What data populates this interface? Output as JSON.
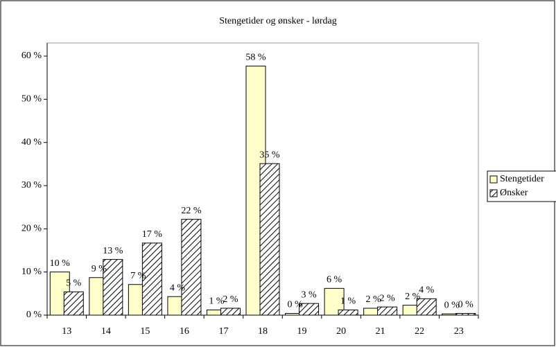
{
  "chart_data": {
    "type": "bar",
    "title": "Stengetider og ønsker - lørdag",
    "categories": [
      "13",
      "14",
      "15",
      "16",
      "17",
      "18",
      "19",
      "20",
      "21",
      "22",
      "23"
    ],
    "series": [
      {
        "name": "Stengetider",
        "color": "#ffffcc",
        "pattern": "solid",
        "values": [
          10,
          8.7,
          7.1,
          4.3,
          1.2,
          57.7,
          0.4,
          6.2,
          1.6,
          2.3,
          0.3
        ],
        "value_labels": [
          "10 %",
          "9 %",
          "7 %",
          "4 %",
          "1 %",
          "58 %",
          "0 %",
          "6 %",
          "2 %",
          "2 %",
          "0 %"
        ]
      },
      {
        "name": "Ønsker",
        "color": "#ffffff",
        "pattern": "hatch",
        "values": [
          5.4,
          12.9,
          16.7,
          22.2,
          1.6,
          35.1,
          2.7,
          1.2,
          1.9,
          3.8,
          0.4
        ],
        "value_labels": [
          "5 %",
          "13 %",
          "17 %",
          "22 %",
          "2 %",
          "35 %",
          "3 %",
          "1 %",
          "2 %",
          "4 %",
          "0 %"
        ]
      }
    ],
    "ylim": [
      0,
      60
    ],
    "yticks": [
      {
        "value": 0,
        "label": "0 %"
      },
      {
        "value": 10,
        "label": "10 %"
      },
      {
        "value": 20,
        "label": "20 %"
      },
      {
        "value": 30,
        "label": "30 %"
      },
      {
        "value": 40,
        "label": "40 %"
      },
      {
        "value": 50,
        "label": "50 %"
      },
      {
        "value": 60,
        "label": "60 %"
      }
    ],
    "grid": false,
    "legend": "right"
  }
}
